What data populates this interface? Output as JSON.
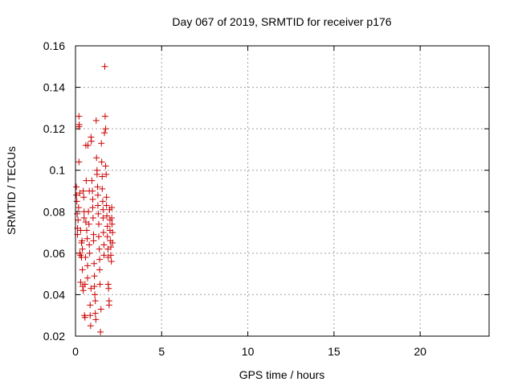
{
  "chart_data": {
    "type": "scatter",
    "title": "Day 067 of 2019, SRMTID for receiver p176",
    "xlabel": "GPS time / hours",
    "ylabel": "SRMTID / TECUs",
    "xlim": [
      0,
      24
    ],
    "ylim": [
      0.02,
      0.16
    ],
    "xticks": [
      0,
      5,
      10,
      15,
      20
    ],
    "xtick_labels": [
      "0",
      "5",
      "10",
      "15",
      "20"
    ],
    "yticks": [
      0.02,
      0.04,
      0.06,
      0.08,
      0.1,
      0.12,
      0.14,
      0.16
    ],
    "ytick_labels": [
      "0.02",
      "0.04",
      "0.06",
      "0.08",
      "0.1",
      "0.12",
      "0.14",
      "0.16"
    ],
    "grid": true,
    "marker": "+",
    "marker_color": "#cc0000",
    "series": [
      {
        "name": "p176",
        "points": [
          [
            0.05,
            0.092
          ],
          [
            0.05,
            0.088
          ],
          [
            0.08,
            0.085
          ],
          [
            0.1,
            0.079
          ],
          [
            0.12,
            0.072
          ],
          [
            0.12,
            0.069
          ],
          [
            0.15,
            0.076
          ],
          [
            0.18,
            0.082
          ],
          [
            0.2,
            0.104
          ],
          [
            0.2,
            0.126
          ],
          [
            0.22,
            0.122
          ],
          [
            0.2,
            0.121
          ],
          [
            0.25,
            0.089
          ],
          [
            0.25,
            0.06
          ],
          [
            0.28,
            0.059
          ],
          [
            0.3,
            0.046
          ],
          [
            0.3,
            0.071
          ],
          [
            0.35,
            0.065
          ],
          [
            0.35,
            0.058
          ],
          [
            0.38,
            0.066
          ],
          [
            0.4,
            0.052
          ],
          [
            0.4,
            0.062
          ],
          [
            0.42,
            0.044
          ],
          [
            0.45,
            0.042
          ],
          [
            0.45,
            0.09
          ],
          [
            0.48,
            0.087
          ],
          [
            0.5,
            0.08
          ],
          [
            0.5,
            0.077
          ],
          [
            0.52,
            0.03
          ],
          [
            0.55,
            0.029
          ],
          [
            0.55,
            0.045
          ],
          [
            0.58,
            0.058
          ],
          [
            0.6,
            0.075
          ],
          [
            0.6,
            0.112
          ],
          [
            0.62,
            0.095
          ],
          [
            0.65,
            0.071
          ],
          [
            0.68,
            0.067
          ],
          [
            0.7,
            0.054
          ],
          [
            0.7,
            0.048
          ],
          [
            0.72,
            0.112
          ],
          [
            0.75,
            0.08
          ],
          [
            0.78,
            0.074
          ],
          [
            0.8,
            0.09
          ],
          [
            0.8,
            0.064
          ],
          [
            0.82,
            0.06
          ],
          [
            0.85,
            0.035
          ],
          [
            0.85,
            0.03
          ],
          [
            0.88,
            0.025
          ],
          [
            0.9,
            0.043
          ],
          [
            0.9,
            0.116
          ],
          [
            0.92,
            0.114
          ],
          [
            0.95,
            0.095
          ],
          [
            0.98,
            0.09
          ],
          [
            1.0,
            0.086
          ],
          [
            1.0,
            0.082
          ],
          [
            1.02,
            0.077
          ],
          [
            1.05,
            0.069
          ],
          [
            1.05,
            0.066
          ],
          [
            1.08,
            0.055
          ],
          [
            1.1,
            0.049
          ],
          [
            1.1,
            0.044
          ],
          [
            1.12,
            0.04
          ],
          [
            1.15,
            0.037
          ],
          [
            1.15,
            0.031
          ],
          [
            1.18,
            0.028
          ],
          [
            1.2,
            0.124
          ],
          [
            1.22,
            0.106
          ],
          [
            1.25,
            0.1
          ],
          [
            1.25,
            0.098
          ],
          [
            1.28,
            0.092
          ],
          [
            1.3,
            0.088
          ],
          [
            1.3,
            0.083
          ],
          [
            1.32,
            0.079
          ],
          [
            1.35,
            0.074
          ],
          [
            1.35,
            0.068
          ],
          [
            1.38,
            0.062
          ],
          [
            1.4,
            0.057
          ],
          [
            1.4,
            0.052
          ],
          [
            1.42,
            0.045
          ],
          [
            1.45,
            0.022
          ],
          [
            1.48,
            0.033
          ],
          [
            1.5,
            0.113
          ],
          [
            1.52,
            0.104
          ],
          [
            1.55,
            0.097
          ],
          [
            1.55,
            0.091
          ],
          [
            1.58,
            0.085
          ],
          [
            1.6,
            0.081
          ],
          [
            1.6,
            0.077
          ],
          [
            1.62,
            0.07
          ],
          [
            1.65,
            0.064
          ],
          [
            1.65,
            0.059
          ],
          [
            1.68,
            0.118
          ],
          [
            1.7,
            0.15
          ],
          [
            1.72,
            0.126
          ],
          [
            1.75,
            0.12
          ],
          [
            1.75,
            0.102
          ],
          [
            1.78,
            0.098
          ],
          [
            1.8,
            0.087
          ],
          [
            1.8,
            0.083
          ],
          [
            1.82,
            0.078
          ],
          [
            1.85,
            0.073
          ],
          [
            1.85,
            0.068
          ],
          [
            1.88,
            0.062
          ],
          [
            1.9,
            0.058
          ],
          [
            1.9,
            0.045
          ],
          [
            1.92,
            0.043
          ],
          [
            1.95,
            0.037
          ],
          [
            1.95,
            0.035
          ],
          [
            1.98,
            0.081
          ],
          [
            2.0,
            0.076
          ],
          [
            2.0,
            0.071
          ],
          [
            2.02,
            0.066
          ],
          [
            2.05,
            0.063
          ],
          [
            2.05,
            0.059
          ],
          [
            2.08,
            0.056
          ],
          [
            2.1,
            0.082
          ],
          [
            2.1,
            0.077
          ],
          [
            2.12,
            0.074
          ],
          [
            2.15,
            0.07
          ],
          [
            2.15,
            0.065
          ]
        ]
      }
    ]
  }
}
